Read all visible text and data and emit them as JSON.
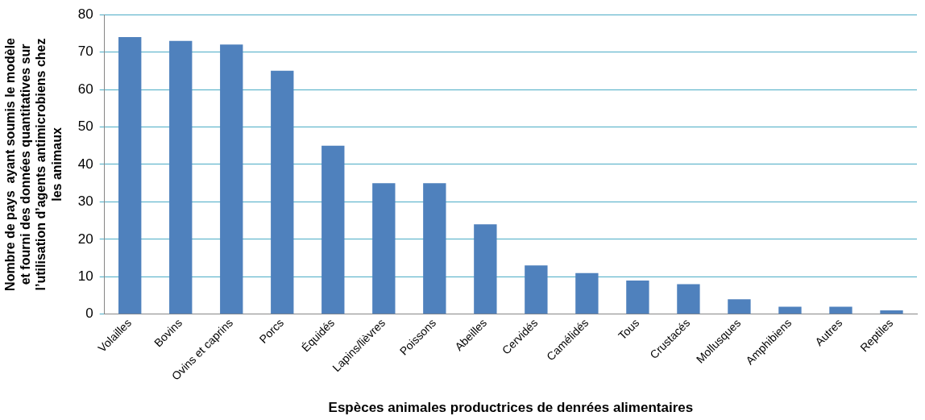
{
  "chart_data": {
    "type": "bar",
    "xlabel": "Espèces animales productrices de denrées alimentaires",
    "ylabel": "Nombre de pays  ayant soumis le modèle et fourni des données quantitatives sur l’utilisation d’agents antimicrobiens chez les animaux",
    "categories": [
      "Volailles",
      "Bovins",
      "Ovins et caprins",
      "Porcs",
      "Équidés",
      "Lapins/lièvres",
      "Poissons",
      "Abeilles",
      "Cervidés",
      "Camélidés",
      "Tous",
      "Crustacés",
      "Mollusques",
      "Amphibiens",
      "Autres",
      "Reptiles"
    ],
    "values": [
      74,
      73,
      72,
      65,
      45,
      35,
      35,
      24,
      13,
      11,
      9,
      8,
      4,
      2,
      2,
      1
    ],
    "color": "#4f81bd",
    "ylim": [
      0,
      80
    ],
    "yticks": [
      0,
      10,
      20,
      30,
      40,
      50,
      60,
      70,
      80
    ],
    "grid": "y",
    "legend": false
  }
}
